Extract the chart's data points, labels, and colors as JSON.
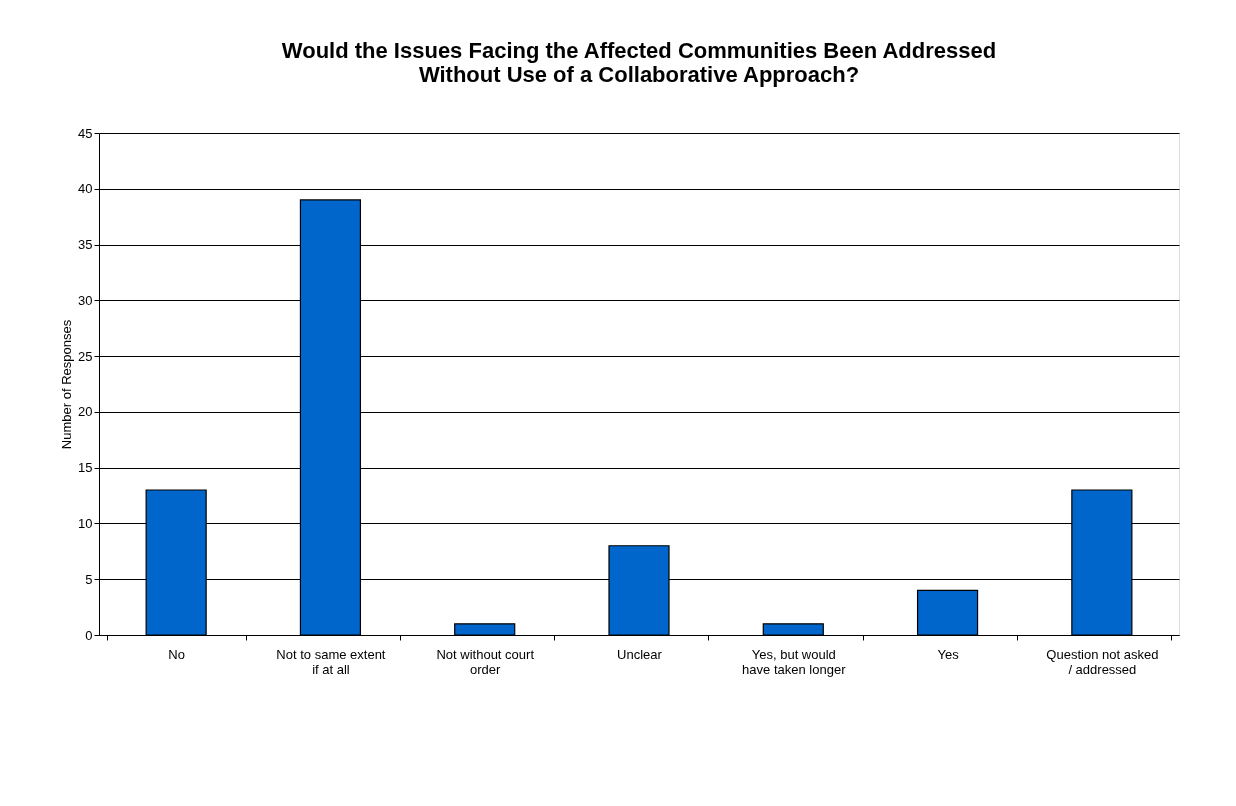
{
  "chart_data": {
    "type": "bar",
    "title": "Would the Issues Facing the Affected Communities Been Addressed Without Use of a Collaborative Approach?",
    "ylabel": "Number of Responses",
    "categories": [
      "No",
      "Not to same extent if at all",
      "Not without court order",
      "Unclear",
      "Yes, but would have taken longer",
      "Yes",
      "Question not asked / addressed"
    ],
    "values": [
      13,
      39,
      1,
      8,
      1,
      4,
      13
    ],
    "color": "#0066cc",
    "ylim": [
      0,
      45
    ],
    "yticks": [
      0,
      5,
      10,
      15,
      20,
      25,
      30,
      35,
      40,
      45
    ],
    "grid": "y"
  }
}
